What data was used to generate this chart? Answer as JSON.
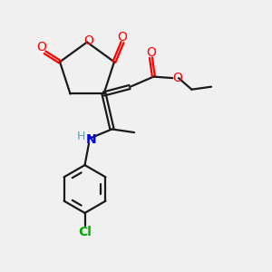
{
  "bg_color": "#f0f0f0",
  "bond_color": "#1a1a1a",
  "oxygen_color": "#ff0000",
  "nitrogen_color": "#0000ee",
  "chlorine_color": "#00aa00",
  "hydrogen_color": "#6699aa",
  "line_width": 1.6,
  "figsize": [
    3.0,
    3.0
  ],
  "dpi": 100,
  "xlim": [
    0,
    10
  ],
  "ylim": [
    0,
    10
  ]
}
